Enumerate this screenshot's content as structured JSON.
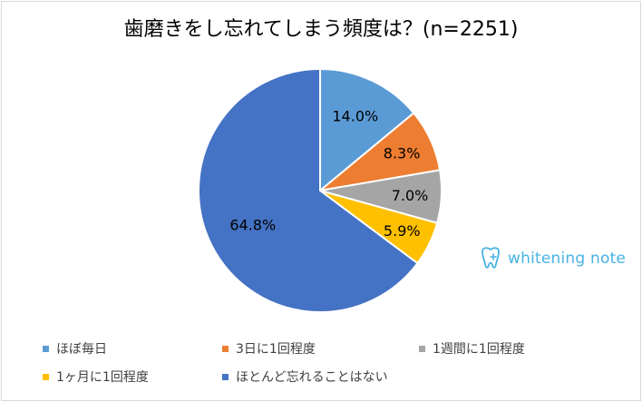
{
  "title": "歯磨きをし忘れてしまう頻度は？(n=2251)",
  "logo_text": "whitening note",
  "chart_data": {
    "type": "pie",
    "title": "歯磨きをし忘れてしまう頻度は？(n=2251)",
    "legend_position": "bottom",
    "slices": [
      {
        "label": "ほぼ毎日",
        "value": 14.0,
        "value_label": "14.0%",
        "color": "#5b9bd5"
      },
      {
        "label": "3日に1回程度",
        "value": 8.3,
        "value_label": "8.3%",
        "color": "#ed7d31"
      },
      {
        "label": "1週間に1回程度",
        "value": 7.0,
        "value_label": "7.0%",
        "color": "#a5a5a5"
      },
      {
        "label": "1ヶ月に1回程度",
        "value": 5.9,
        "value_label": "5.9%",
        "color": "#ffc000"
      },
      {
        "label": "ほとんど忘れることはない",
        "value": 64.8,
        "value_label": "64.8%",
        "color": "#4472c4"
      }
    ]
  }
}
